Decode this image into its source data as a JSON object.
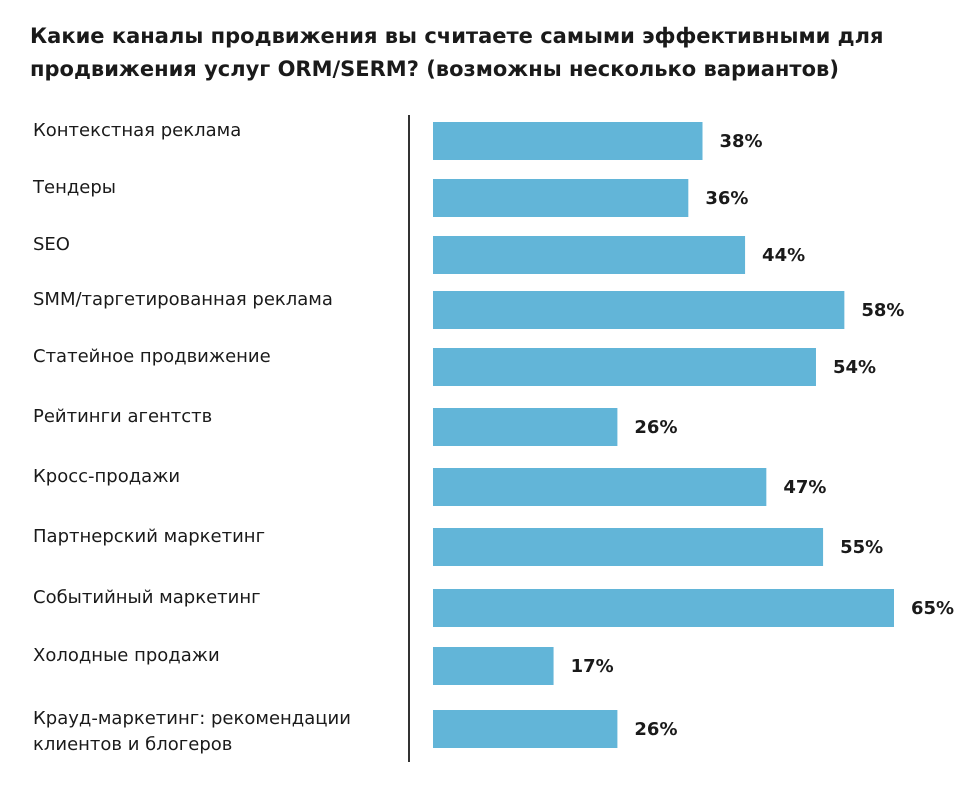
{
  "title_lines": [
    "Какие каналы продвижения вы считаете самыми эффективными для",
    "продвижения услуг ORM/SERM? (возможны несколько вариантов)"
  ],
  "colors": {
    "bar": "#62b5d8",
    "axis": "#333333",
    "text": "#1a1a1a"
  },
  "chart_data": {
    "type": "bar",
    "orientation": "horizontal",
    "title": "Какие каналы продвижения вы считаете самыми эффективными для продвижения услуг ORM/SERM? (возможны несколько вариантов)",
    "categories": [
      [
        "Контекстная реклама"
      ],
      [
        "Тендеры"
      ],
      [
        "SEO"
      ],
      [
        "SMM/таргетированная реклама"
      ],
      [
        "Статейное продвижение"
      ],
      [
        "Рейтинги агентств"
      ],
      [
        "Кросс-продажи"
      ],
      [
        "Партнерский маркетинг"
      ],
      [
        "Событийный маркетинг"
      ],
      [
        "Холодные продажи"
      ],
      [
        "Крауд-маркетинг: рекомендации",
        "клиентов и блогеров"
      ]
    ],
    "values": [
      38,
      36,
      44,
      58,
      54,
      26,
      47,
      55,
      65,
      17,
      26
    ],
    "value_labels": [
      "38%",
      "36%",
      "44%",
      "58%",
      "54%",
      "26%",
      "47%",
      "55%",
      "65%",
      "17%",
      "26%"
    ],
    "unit": "%",
    "xlim": [
      0,
      65
    ],
    "grid": false,
    "legend": "none"
  }
}
